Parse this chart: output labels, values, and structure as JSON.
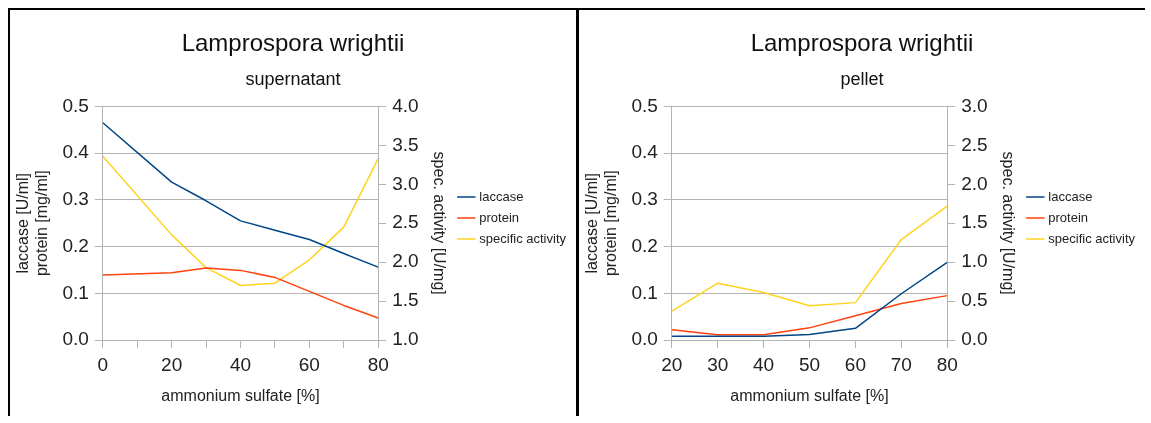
{
  "chart_data": [
    {
      "type": "line",
      "title": "Lamprospora wrightii",
      "subtitle": "supernatant",
      "xlabel": "ammonium sulfate [%]",
      "ylabel": "laccase [U/ml]\nprotein [mg/ml]",
      "y2label": "spec. activity [U/mg]",
      "x": [
        0,
        20,
        30,
        40,
        50,
        60,
        70,
        80
      ],
      "series": [
        {
          "name": "laccase",
          "color": "#004586",
          "values": [
            0.465,
            0.338,
            0.298,
            0.255,
            0.235,
            0.215,
            0.185,
            0.156
          ]
        },
        {
          "name": "protein",
          "color": "#ff420e",
          "values": [
            0.139,
            0.144,
            0.154,
            0.149,
            0.134,
            0.104,
            0.074,
            0.047
          ]
        },
        {
          "name": "specific activity",
          "color": "#ffd320",
          "axis": "y2",
          "values": [
            3.36,
            2.35,
            1.93,
            1.7,
            1.73,
            2.03,
            2.45,
            3.33
          ]
        }
      ],
      "xlim": [
        0,
        80
      ],
      "xticks": [
        0,
        {
          "value": 10,
          "label": null
        },
        20,
        {
          "value": 30,
          "label": null
        },
        40,
        {
          "value": 50,
          "label": null
        },
        60,
        {
          "value": 70,
          "label": null
        },
        80
      ],
      "ylim": [
        0,
        0.5
      ],
      "yticks": [
        {
          "value": 0,
          "label": "0.0"
        },
        0.1,
        0.2,
        0.3,
        0.4,
        0.5
      ],
      "y2lim": [
        1,
        4
      ],
      "y2ticks": [
        {
          "value": 1,
          "label": "1.0"
        },
        1.5,
        {
          "value": 2,
          "label": "2.0"
        },
        2.5,
        {
          "value": 3,
          "label": "3.0"
        },
        3.5,
        {
          "value": 4,
          "label": "4.0"
        }
      ],
      "grid": "y",
      "legend": "right",
      "marker": "none",
      "line_style": "solid"
    },
    {
      "type": "line",
      "title": "Lamprospora wrightii",
      "subtitle": "pellet",
      "xlabel": "ammonium sulfate [%]",
      "ylabel": "laccase [U/ml]\nprotein [mg/ml]",
      "y2label": "spec. activity [U/mg]",
      "x": [
        20,
        30,
        40,
        50,
        60,
        70,
        80
      ],
      "series": [
        {
          "name": "laccase",
          "color": "#004586",
          "values": [
            0.008,
            0.008,
            0.008,
            0.012,
            0.025,
            0.099,
            0.166
          ]
        },
        {
          "name": "protein",
          "color": "#ff420e",
          "values": [
            0.022,
            0.011,
            0.011,
            0.026,
            0.052,
            0.078,
            0.095
          ]
        },
        {
          "name": "specific activity",
          "color": "#ffd320",
          "axis": "y2",
          "values": [
            0.37,
            0.73,
            0.61,
            0.44,
            0.48,
            1.29,
            1.72
          ]
        }
      ],
      "xlim": [
        20,
        80
      ],
      "xticks": [
        20,
        30,
        40,
        50,
        60,
        70,
        80
      ],
      "ylim": [
        0,
        0.5
      ],
      "yticks": [
        {
          "value": 0,
          "label": "0.0"
        },
        0.1,
        0.2,
        0.3,
        0.4,
        0.5
      ],
      "y2lim": [
        0,
        3
      ],
      "y2ticks": [
        {
          "value": 0,
          "label": "0.0"
        },
        0.5,
        {
          "value": 1,
          "label": "1.0"
        },
        1.5,
        {
          "value": 2,
          "label": "2.0"
        },
        2.5,
        {
          "value": 3,
          "label": "3.0"
        }
      ],
      "grid": "y",
      "legend": "right",
      "marker": "none",
      "line_style": "solid"
    }
  ]
}
